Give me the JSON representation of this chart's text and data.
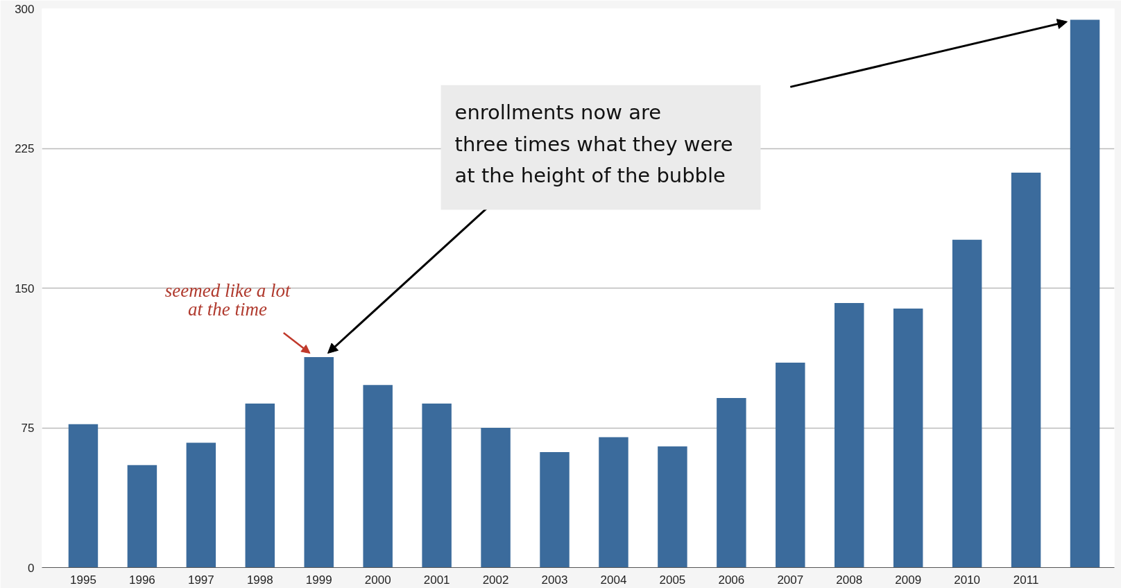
{
  "chart_data": {
    "type": "bar",
    "categories": [
      "1995",
      "1996",
      "1997",
      "1998",
      "1999",
      "2000",
      "2001",
      "2002",
      "2003",
      "2004",
      "2005",
      "2006",
      "2007",
      "2008",
      "2009",
      "2010",
      "2011",
      null
    ],
    "values": [
      77,
      55,
      67,
      88,
      113,
      98,
      88,
      75,
      62,
      70,
      65,
      91,
      110,
      142,
      139,
      176,
      212,
      294
    ],
    "color": "#3b6b9c",
    "ylim": [
      0,
      300
    ],
    "yticks": [
      0,
      75,
      150,
      225,
      300
    ],
    "grid": "y",
    "annotations": [
      {
        "text": "seemed like a lot\nat the time",
        "x": "1999",
        "y": 113
      },
      "enrollments now are\nthree times what they were\nat the height of the bubble"
    ]
  }
}
